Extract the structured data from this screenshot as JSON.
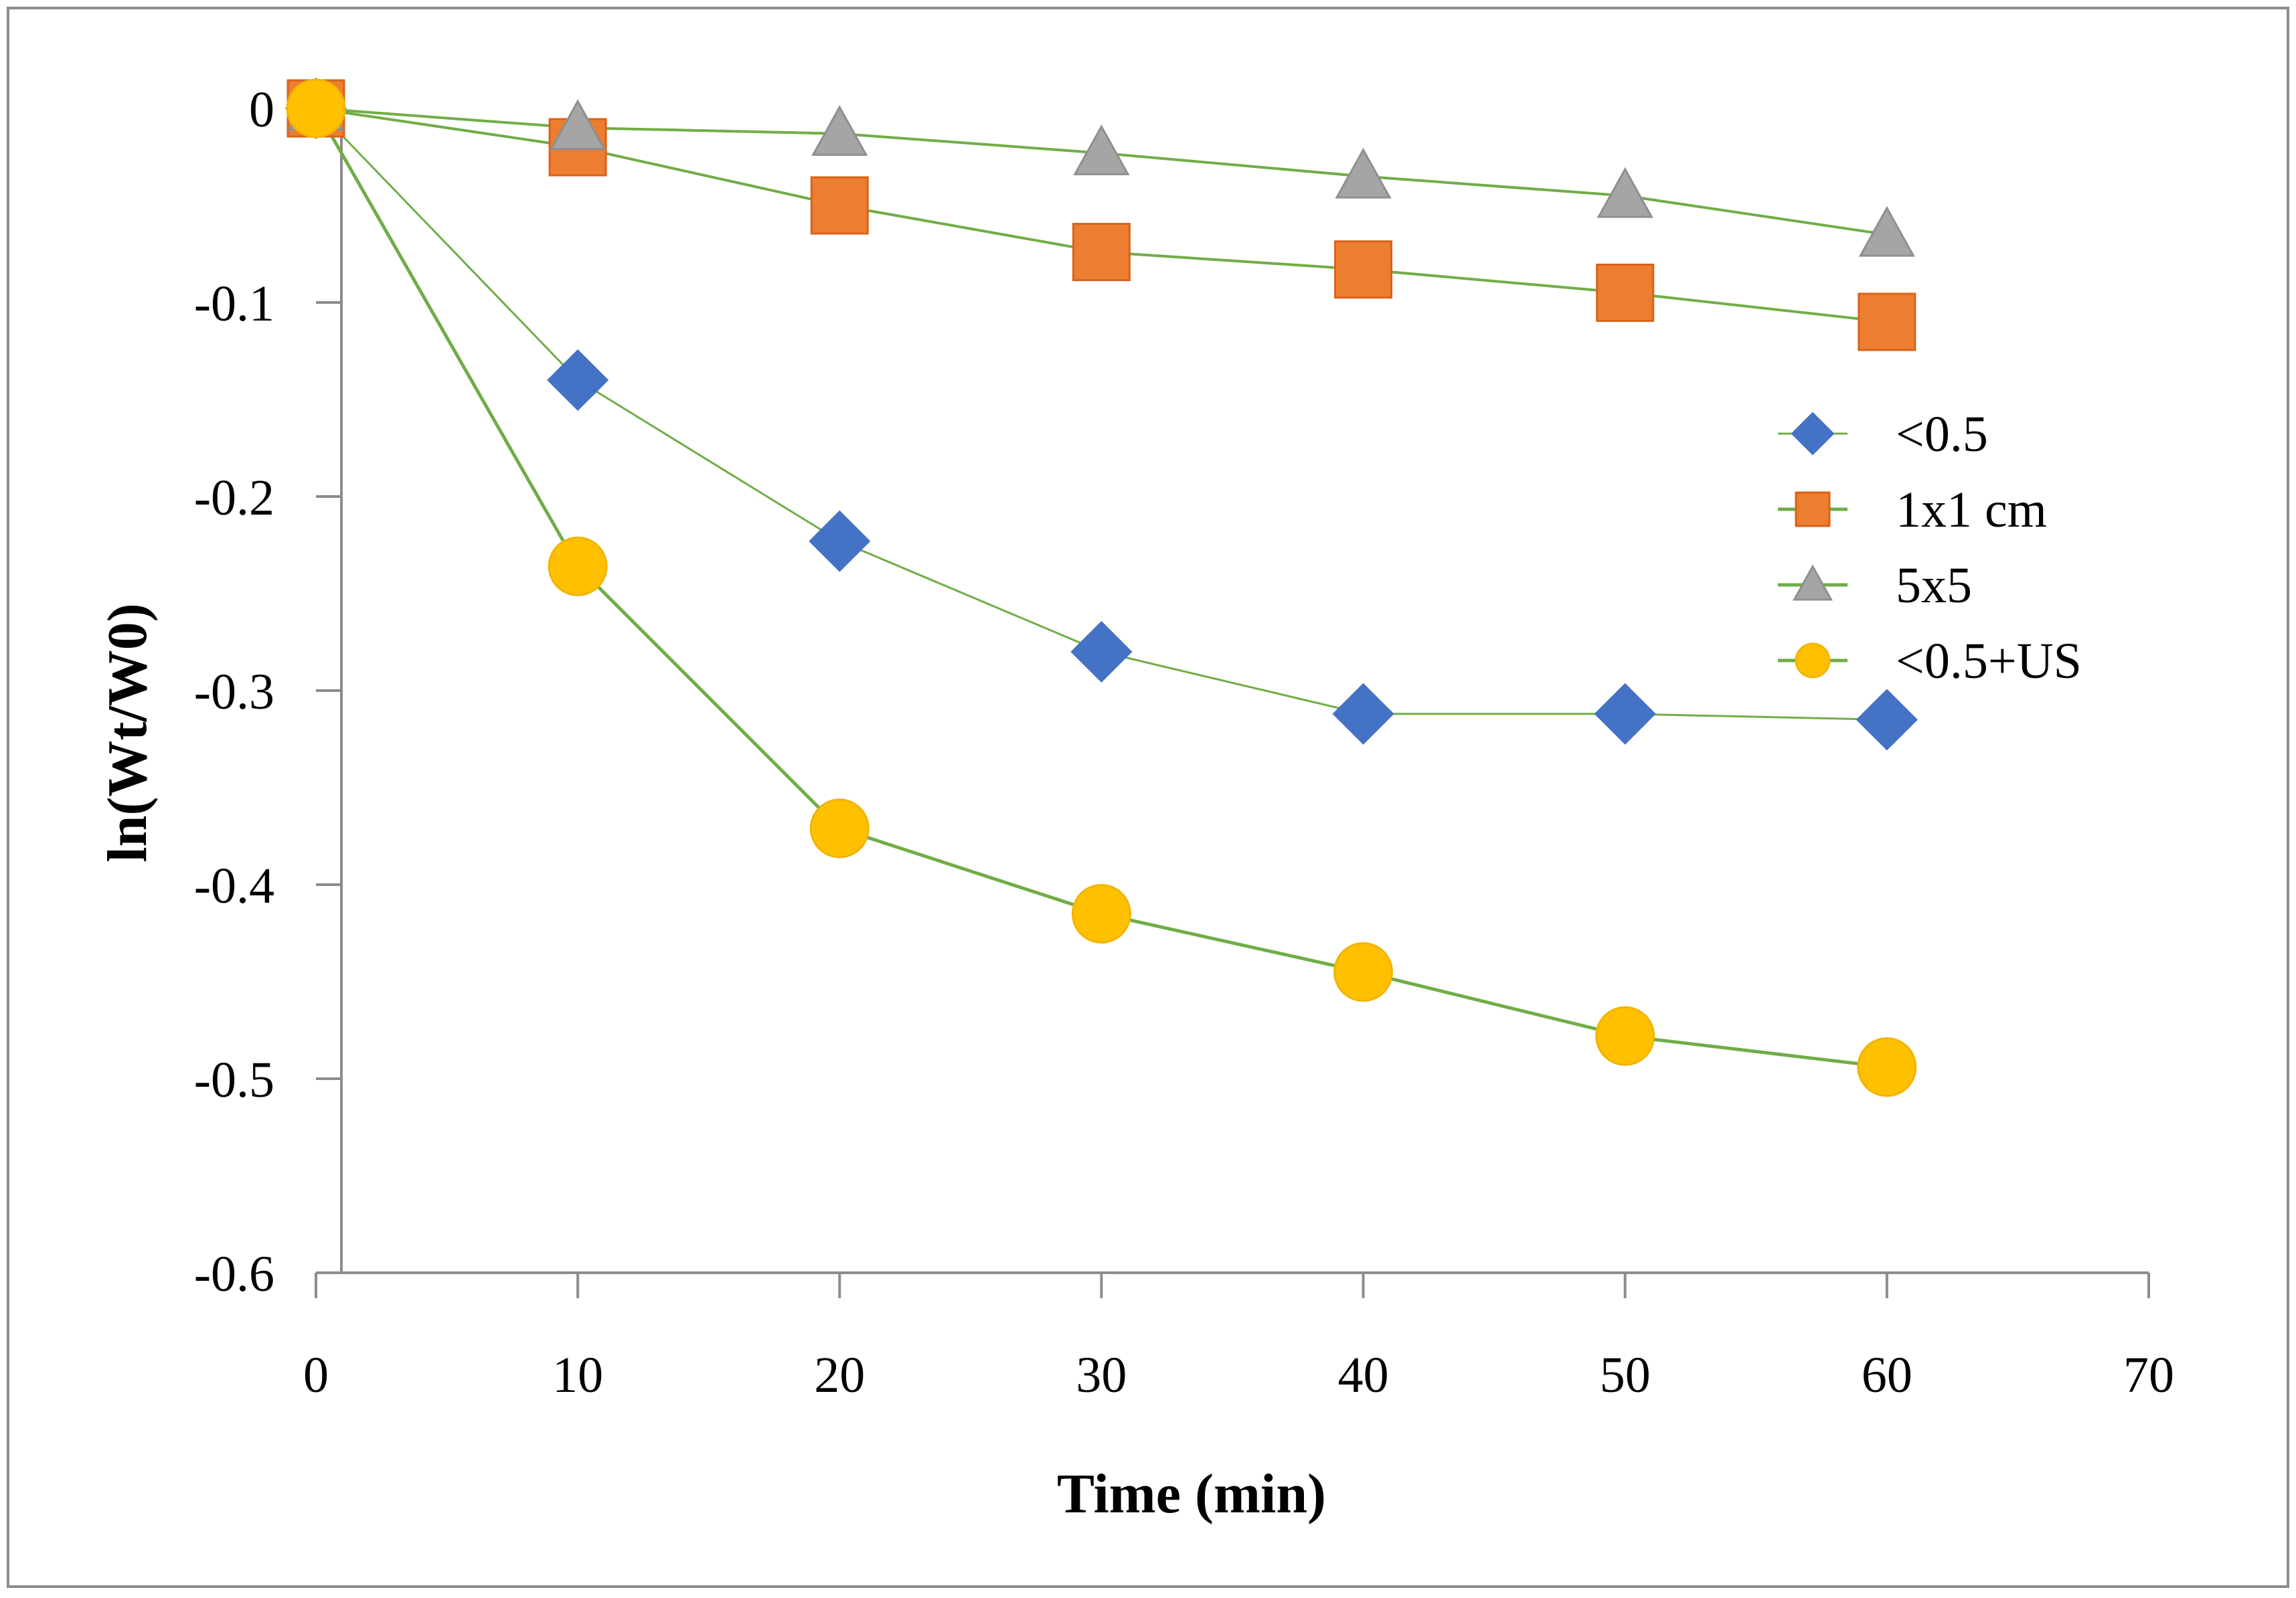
{
  "chart_data": {
    "type": "line",
    "title": "",
    "xlabel": "Time (min)",
    "ylabel": "ln(Wt/W0)",
    "xlim": [
      0,
      70
    ],
    "ylim": [
      -0.6,
      0
    ],
    "x_ticks": [
      0,
      10,
      20,
      30,
      40,
      50,
      60,
      70
    ],
    "x_tick_labels": [
      "0",
      "10",
      "20",
      "30",
      "40",
      "50",
      "60",
      "70"
    ],
    "y_ticks": [
      0,
      -0.1,
      -0.2,
      -0.3,
      -0.4,
      -0.5,
      -0.6
    ],
    "y_tick_labels": [
      "0",
      "-0.1",
      "-0.2",
      "-0.3",
      "-0.4",
      "-0.5",
      "-0.6"
    ],
    "grid": false,
    "legend_position": "right",
    "line_color": "#70AD47",
    "x": [
      0,
      10,
      20,
      30,
      40,
      50,
      60
    ],
    "series": [
      {
        "name": "<0.5",
        "marker": "diamond",
        "color": "#4472C4",
        "values": [
          0,
          -0.14,
          -0.223,
          -0.28,
          -0.312,
          -0.312,
          -0.315
        ]
      },
      {
        "name": "1x1 cm",
        "marker": "square",
        "color": "#ED7D31",
        "values": [
          0,
          -0.02,
          -0.05,
          -0.074,
          -0.083,
          -0.095,
          -0.11
        ]
      },
      {
        "name": "5x5",
        "marker": "triangle",
        "color": "#A5A5A5",
        "values": [
          0,
          -0.01,
          -0.013,
          -0.023,
          -0.035,
          -0.045,
          -0.065
        ]
      },
      {
        "name": "<0.5+US",
        "marker": "circle",
        "color": "#FFC000",
        "values": [
          0,
          -0.236,
          -0.371,
          -0.415,
          -0.445,
          -0.478,
          -0.494
        ]
      }
    ]
  }
}
